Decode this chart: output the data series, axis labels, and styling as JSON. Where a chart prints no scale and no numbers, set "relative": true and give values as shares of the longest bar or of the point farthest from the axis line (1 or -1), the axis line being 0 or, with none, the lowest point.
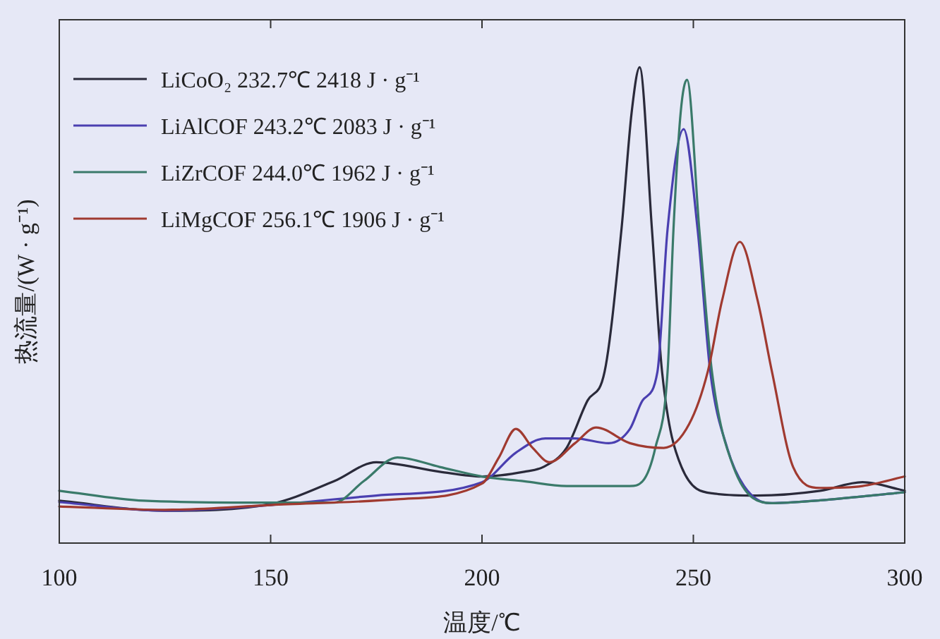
{
  "chart_data": {
    "type": "line",
    "relative": true,
    "xlabel": "温度/℃",
    "ylabel": "热流量/(W · g⁻¹)",
    "xlim": [
      100,
      300
    ],
    "xticks": [
      100,
      150,
      200,
      250,
      300
    ],
    "grid": false,
    "legend": "top left",
    "line_style": "solid",
    "marker": "none",
    "series": [
      {
        "name": "LiCoO₂ 232.7℃ 2418 J · g⁻¹",
        "color": "#2a2a3a",
        "x": [
          100,
          125,
          150,
          165,
          175,
          190,
          200,
          210,
          214.5,
          220,
          225,
          229,
          233,
          235.4,
          237.3,
          240.2,
          242.6,
          247.2,
          255,
          265,
          280,
          290,
          300
        ],
        "values": [
          0.089,
          0.068,
          0.082,
          0.13,
          0.17,
          0.15,
          0.14,
          0.15,
          0.16,
          0.2,
          0.3,
          0.36,
          0.66,
          0.905,
          1.0,
          0.66,
          0.36,
          0.16,
          0.104,
          0.1,
          0.11,
          0.128,
          0.11
        ]
      },
      {
        "name": "LiAlCOF 243.2℃ 2083 J · g⁻¹",
        "color": "#4a3fb0",
        "x": [
          100,
          125,
          150,
          175,
          200,
          208,
          215,
          222,
          230,
          235,
          238,
          241.5,
          243.9,
          247.7,
          251,
          254,
          258,
          262,
          268,
          280,
          300
        ],
        "values": [
          0.086,
          0.068,
          0.08,
          0.1,
          0.128,
          0.19,
          0.22,
          0.22,
          0.21,
          0.24,
          0.3,
          0.36,
          0.66,
          0.87,
          0.66,
          0.36,
          0.2,
          0.12,
          0.084,
          0.09,
          0.107
        ]
      },
      {
        "name": "LiZrCOF 244.0℃ 1962 J · g⁻¹",
        "color": "#3a7a6a",
        "x": [
          100,
          120,
          150,
          165,
          172,
          180,
          190,
          200,
          210,
          220,
          235,
          238,
          241,
          243.9,
          245.3,
          247,
          248.5,
          251.4,
          254.4,
          259.5,
          268.6,
          280,
          300
        ],
        "values": [
          0.11,
          0.089,
          0.085,
          0.085,
          0.13,
          0.18,
          0.16,
          0.14,
          0.13,
          0.12,
          0.12,
          0.13,
          0.2,
          0.36,
          0.66,
          0.905,
          0.974,
          0.66,
          0.36,
          0.16,
          0.084,
          0.09,
          0.107
        ]
      },
      {
        "name": "LiMgCOF 256.1℃ 1906 J · g⁻¹",
        "color": "#a03a30",
        "x": [
          100,
          125,
          150,
          180,
          200,
          204,
          208,
          212,
          216,
          222,
          227,
          235,
          243,
          249,
          253.4,
          256.8,
          261,
          265.2,
          268.6,
          273.6,
          280,
          290,
          300
        ],
        "values": [
          0.077,
          0.07,
          0.08,
          0.092,
          0.125,
          0.18,
          0.24,
          0.2,
          0.17,
          0.21,
          0.243,
          0.21,
          0.2,
          0.25,
          0.36,
          0.51,
          0.633,
          0.51,
          0.36,
          0.16,
          0.116,
          0.12,
          0.14
        ]
      }
    ]
  }
}
